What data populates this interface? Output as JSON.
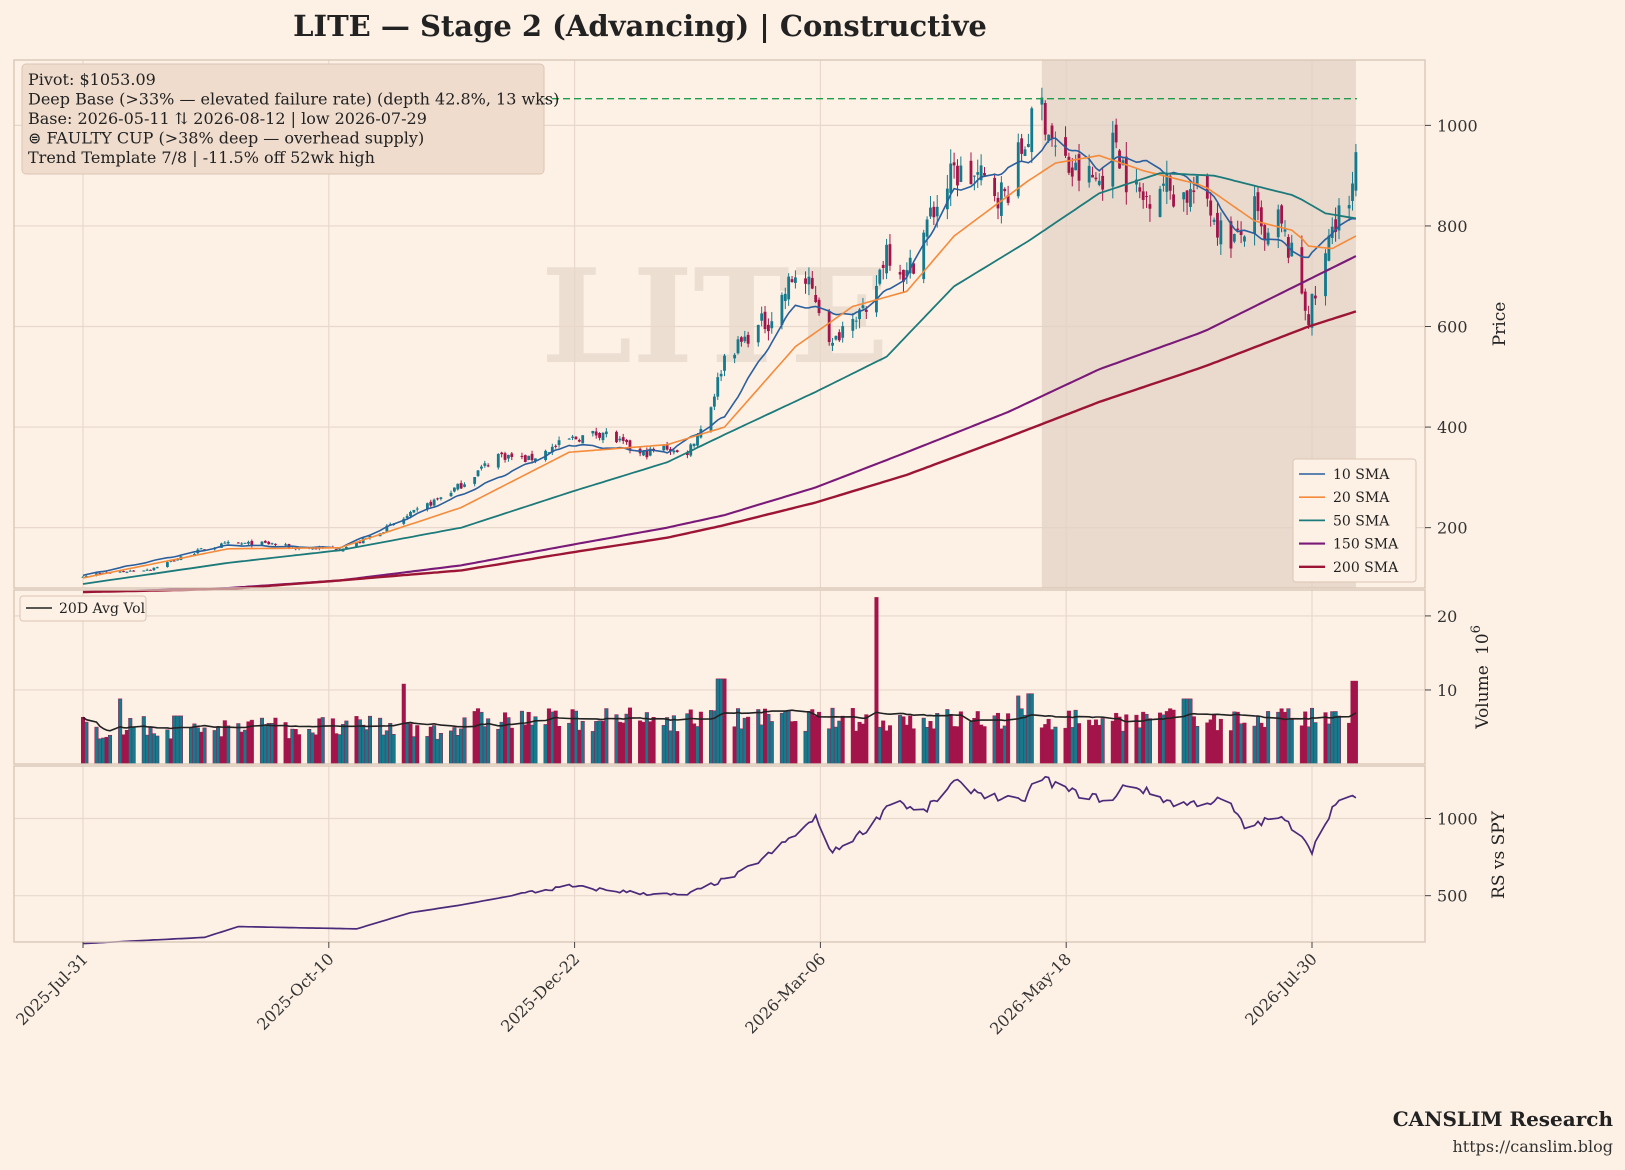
{
  "title": "LITE  —  Stage 2 (Advancing)  |  Constructive",
  "watermark": "LITE",
  "info_box": {
    "lines": [
      "Pivot: $1053.09",
      "Deep Base (>33% — elevated failure rate)  (depth 42.8%, 13 wks)",
      "Base: 2026-05-11 ⇅ 2026-08-12  |  low 2026-07-29",
      "⊜ FAULTY CUP (>38% deep — overhead supply)",
      "Trend Template 7/8  |  -11.5% off 52wk high"
    ]
  },
  "credit": {
    "brand": "CANSLIM Research",
    "url": "https://canslim.blog"
  },
  "colors": {
    "background": "#fdf1e6",
    "up_candle": "#147a8c",
    "down_candle": "#a3154a",
    "sma10": "#2a5f9e",
    "sma20": "#f58a3a",
    "sma50": "#1c7a7a",
    "sma150": "#7a1a78",
    "sma200": "#9c1535",
    "pivot_line": "#1f9d4a",
    "avg_vol": "#222222",
    "rs_line": "#4b2a7a",
    "base_shade": "#e3d2c6",
    "grid": "#e8d8cc"
  },
  "chart_data": [
    {
      "type": "candlestick",
      "panel": "price",
      "ylabel": "Price",
      "yticks": [
        200,
        400,
        600,
        800,
        1000
      ],
      "ylim": [
        80,
        1130
      ],
      "x_tick_labels": [
        "2025-Jul-31",
        "2025-Oct-10",
        "2025-Dec-22",
        "2026-Mar-06",
        "2026-May-18",
        "2026-Jul-30"
      ],
      "pivot": 1053.09,
      "base_shade": {
        "start": "2026-05-11",
        "end": "2026-08-12"
      },
      "close_anchors": [
        [
          "2025-07-31",
          105
        ],
        [
          "2025-08-20",
          118
        ],
        [
          "2025-09-05",
          158
        ],
        [
          "2025-09-12",
          168
        ],
        [
          "2025-09-25",
          168
        ],
        [
          "2025-10-01",
          160
        ],
        [
          "2025-10-15",
          158
        ],
        [
          "2025-10-20",
          168
        ],
        [
          "2025-11-01",
          210
        ],
        [
          "2025-11-10",
          245
        ],
        [
          "2025-11-20",
          285
        ],
        [
          "2025-12-01",
          345
        ],
        [
          "2025-12-10",
          335
        ],
        [
          "2025-12-22",
          375
        ],
        [
          "2026-01-01",
          390
        ],
        [
          "2026-01-12",
          345
        ],
        [
          "2026-01-20",
          360
        ],
        [
          "2026-01-25",
          340
        ],
        [
          "2026-02-01",
          420
        ],
        [
          "2026-02-06",
          540
        ],
        [
          "2026-02-13",
          580
        ],
        [
          "2026-02-20",
          620
        ],
        [
          "2026-02-27",
          705
        ],
        [
          "2026-03-05",
          660
        ],
        [
          "2026-03-10",
          560
        ],
        [
          "2026-03-16",
          640
        ],
        [
          "2026-03-20",
          610
        ],
        [
          "2026-03-26",
          760
        ],
        [
          "2026-04-01",
          700
        ],
        [
          "2026-04-08",
          820
        ],
        [
          "2026-04-15",
          905
        ],
        [
          "2026-04-22",
          895
        ],
        [
          "2026-04-30",
          860
        ],
        [
          "2026-05-07",
          985
        ],
        [
          "2026-05-11",
          1040
        ],
        [
          "2026-05-15",
          950
        ],
        [
          "2026-05-20",
          905
        ],
        [
          "2026-05-28",
          890
        ],
        [
          "2026-06-02",
          975
        ],
        [
          "2026-06-05",
          900
        ],
        [
          "2026-06-10",
          850
        ],
        [
          "2026-06-15",
          895
        ],
        [
          "2026-06-20",
          860
        ],
        [
          "2026-06-28",
          870
        ],
        [
          "2026-07-03",
          790
        ],
        [
          "2026-07-08",
          770
        ],
        [
          "2026-07-13",
          830
        ],
        [
          "2026-07-16",
          760
        ],
        [
          "2026-07-20",
          810
        ],
        [
          "2026-07-25",
          720
        ],
        [
          "2026-07-29",
          620
        ],
        [
          "2026-08-02",
          700
        ],
        [
          "2026-08-05",
          800
        ],
        [
          "2026-08-07",
          840
        ],
        [
          "2026-08-10",
          820
        ],
        [
          "2026-08-12",
          920
        ]
      ],
      "sma_anchors": {
        "10 SMA": [
          [
            "2025-07-31",
            105
          ],
          [
            "2025-09-12",
            165
          ],
          [
            "2025-10-15",
            160
          ],
          [
            "2025-11-20",
            265
          ],
          [
            "2025-12-22",
            365
          ],
          [
            "2026-01-20",
            350
          ],
          [
            "2026-02-06",
            420
          ],
          [
            "2026-02-27",
            645
          ],
          [
            "2026-03-16",
            620
          ],
          [
            "2026-04-01",
            700
          ],
          [
            "2026-04-15",
            870
          ],
          [
            "2026-05-07",
            930
          ],
          [
            "2026-05-15",
            975
          ],
          [
            "2026-05-28",
            915
          ],
          [
            "2026-06-05",
            940
          ],
          [
            "2026-06-28",
            880
          ],
          [
            "2026-07-08",
            790
          ],
          [
            "2026-07-20",
            770
          ],
          [
            "2026-07-29",
            735
          ],
          [
            "2026-08-05",
            790
          ],
          [
            "2026-08-12",
            815
          ]
        ],
        "20 SMA": [
          [
            "2025-07-31",
            100
          ],
          [
            "2025-09-12",
            158
          ],
          [
            "2025-10-15",
            160
          ],
          [
            "2025-11-20",
            240
          ],
          [
            "2025-12-22",
            350
          ],
          [
            "2026-01-20",
            365
          ],
          [
            "2026-02-06",
            400
          ],
          [
            "2026-02-27",
            560
          ],
          [
            "2026-03-16",
            640
          ],
          [
            "2026-04-01",
            670
          ],
          [
            "2026-04-15",
            780
          ],
          [
            "2026-05-07",
            890
          ],
          [
            "2026-05-15",
            925
          ],
          [
            "2026-05-28",
            940
          ],
          [
            "2026-06-10",
            910
          ],
          [
            "2026-06-28",
            880
          ],
          [
            "2026-07-13",
            810
          ],
          [
            "2026-07-25",
            790
          ],
          [
            "2026-07-29",
            760
          ],
          [
            "2026-08-05",
            755
          ],
          [
            "2026-08-12",
            780
          ]
        ],
        "50 SMA": [
          [
            "2025-07-31",
            88
          ],
          [
            "2025-09-12",
            130
          ],
          [
            "2025-10-15",
            155
          ],
          [
            "2025-11-20",
            200
          ],
          [
            "2025-12-22",
            270
          ],
          [
            "2026-01-20",
            330
          ],
          [
            "2026-02-06",
            385
          ],
          [
            "2026-03-05",
            470
          ],
          [
            "2026-03-26",
            540
          ],
          [
            "2026-04-15",
            680
          ],
          [
            "2026-05-07",
            770
          ],
          [
            "2026-05-28",
            865
          ],
          [
            "2026-06-15",
            905
          ],
          [
            "2026-07-01",
            900
          ],
          [
            "2026-07-13",
            880
          ],
          [
            "2026-07-25",
            860
          ],
          [
            "2026-08-03",
            825
          ],
          [
            "2026-08-12",
            815
          ]
        ],
        "150 SMA": [
          [
            "2025-07-31",
            72
          ],
          [
            "2025-09-12",
            80
          ],
          [
            "2025-10-15",
            95
          ],
          [
            "2025-11-20",
            125
          ],
          [
            "2025-12-22",
            165
          ],
          [
            "2026-01-20",
            200
          ],
          [
            "2026-02-06",
            225
          ],
          [
            "2026-03-05",
            280
          ],
          [
            "2026-04-01",
            350
          ],
          [
            "2026-05-01",
            430
          ],
          [
            "2026-05-28",
            515
          ],
          [
            "2026-06-28",
            590
          ],
          [
            "2026-07-13",
            640
          ],
          [
            "2026-08-12",
            740
          ]
        ],
        "200 SMA": [
          [
            "2025-07-31",
            72
          ],
          [
            "2025-09-12",
            78
          ],
          [
            "2025-10-15",
            95
          ],
          [
            "2025-11-20",
            115
          ],
          [
            "2025-12-22",
            150
          ],
          [
            "2026-01-20",
            180
          ],
          [
            "2026-02-06",
            205
          ],
          [
            "2026-03-05",
            250
          ],
          [
            "2026-04-01",
            305
          ],
          [
            "2026-05-01",
            380
          ],
          [
            "2026-05-28",
            450
          ],
          [
            "2026-06-28",
            520
          ],
          [
            "2026-07-29",
            600
          ],
          [
            "2026-08-12",
            630
          ]
        ]
      }
    },
    {
      "type": "bar",
      "panel": "volume",
      "ylabel": "Volume",
      "unit_label": "10^6",
      "yticks": [
        10,
        20
      ],
      "ylim": [
        0,
        23.5
      ],
      "legend": "20D Avg Vol",
      "spikes": [
        [
          "2025-08-10",
          8.8
        ],
        [
          "2025-08-28",
          6.5
        ],
        [
          "2025-09-25",
          5.5
        ],
        [
          "2025-10-26",
          6.2
        ],
        [
          "2025-11-02",
          10.8
        ],
        [
          "2025-11-25",
          7.0
        ],
        [
          "2026-01-01",
          5.8
        ],
        [
          "2026-02-05",
          11.5
        ],
        [
          "2026-02-03",
          7.2
        ],
        [
          "2026-03-22",
          22.5
        ],
        [
          "2026-05-03",
          9.2
        ],
        [
          "2026-05-08",
          9.5
        ],
        [
          "2026-06-23",
          8.8
        ],
        [
          "2026-07-21",
          7.0
        ],
        [
          "2026-08-12",
          11.2
        ]
      ]
    },
    {
      "type": "line",
      "panel": "rs",
      "ylabel": "RS vs SPY",
      "yticks": [
        500,
        1000
      ],
      "ylim": [
        200,
        1340
      ],
      "values_anchors": [
        [
          "2025-07-31",
          190
        ],
        [
          "2025-09-05",
          230
        ],
        [
          "2025-09-15",
          300
        ],
        [
          "2025-10-20",
          285
        ],
        [
          "2025-11-05",
          390
        ],
        [
          "2025-11-20",
          440
        ],
        [
          "2025-12-10",
          520
        ],
        [
          "2025-12-22",
          560
        ],
        [
          "2026-01-10",
          520
        ],
        [
          "2026-01-25",
          500
        ],
        [
          "2026-02-10",
          640
        ],
        [
          "2026-02-20",
          780
        ],
        [
          "2026-03-01",
          930
        ],
        [
          "2026-03-05",
          1000
        ],
        [
          "2026-03-10",
          780
        ],
        [
          "2026-03-22",
          960
        ],
        [
          "2026-03-28",
          1140
        ],
        [
          "2026-04-05",
          1020
        ],
        [
          "2026-04-15",
          1230
        ],
        [
          "2026-04-25",
          1150
        ],
        [
          "2026-05-05",
          1100
        ],
        [
          "2026-05-10",
          1270
        ],
        [
          "2026-05-20",
          1170
        ],
        [
          "2026-06-01",
          1110
        ],
        [
          "2026-06-05",
          1230
        ],
        [
          "2026-06-20",
          1090
        ],
        [
          "2026-07-05",
          1120
        ],
        [
          "2026-07-10",
          940
        ],
        [
          "2026-07-20",
          1010
        ],
        [
          "2026-07-27",
          900
        ],
        [
          "2026-07-30",
          790
        ],
        [
          "2026-08-05",
          1070
        ],
        [
          "2026-08-12",
          1150
        ]
      ]
    }
  ]
}
